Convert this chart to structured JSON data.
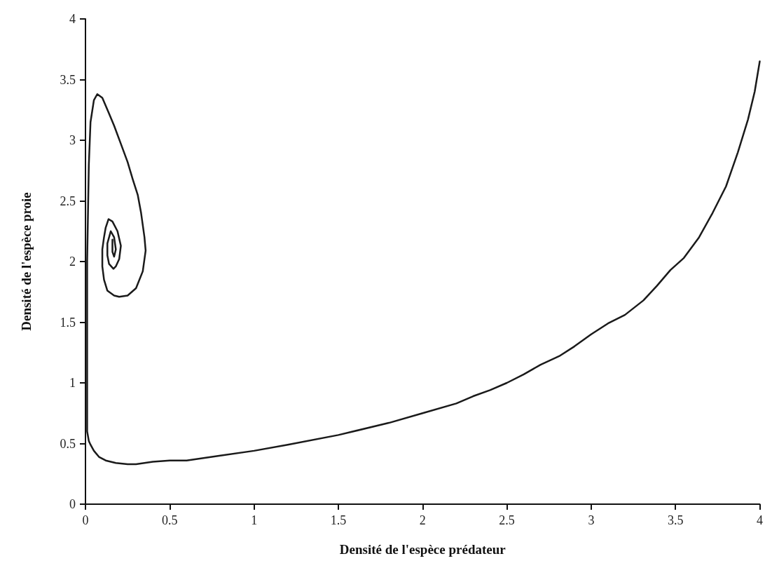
{
  "chart_data": {
    "type": "line",
    "xlabel": "Densité de l'espèce prédateur",
    "ylabel": "Densité de l'espèce proie",
    "x": [
      4,
      3.97,
      3.93,
      3.87,
      3.8,
      3.72,
      3.64,
      3.55,
      3.47,
      3.39,
      3.31,
      3.2,
      3.1,
      3,
      2.9,
      2.81,
      2.7,
      2.6,
      2.5,
      2.4,
      2.3,
      2.2,
      2,
      1.8,
      1.5,
      1.2,
      1,
      0.8,
      0.6,
      0.5,
      0.4,
      0.3,
      0.25,
      0.18,
      0.12,
      0.08,
      0.05,
      0.03,
      0.02,
      0.01,
      0.01,
      0.01,
      0.02,
      0.03,
      0.05,
      0.07,
      0.1,
      0.14,
      0.17,
      0.21,
      0.25,
      0.28,
      0.31,
      0.33,
      0.35,
      0.357,
      0.34,
      0.3,
      0.25,
      0.2,
      0.17,
      0.13,
      0.11,
      0.1,
      0.1,
      0.11,
      0.12,
      0.137,
      0.16,
      0.19,
      0.21,
      0.2,
      0.18,
      0.166,
      0.14,
      0.13,
      0.13,
      0.15,
      0.17,
      0.18,
      0.17,
      0.16,
      0.16
    ],
    "values": [
      3.65,
      3.4,
      3.17,
      2.9,
      2.62,
      2.4,
      2.2,
      2.03,
      1.93,
      1.8,
      1.68,
      1.56,
      1.49,
      1.4,
      1.3,
      1.22,
      1.15,
      1.07,
      1,
      0.94,
      0.89,
      0.83,
      0.75,
      0.67,
      0.57,
      0.49,
      0.44,
      0.4,
      0.36,
      0.36,
      0.35,
      0.33,
      0.33,
      0.34,
      0.36,
      0.39,
      0.44,
      0.49,
      0.52,
      0.6,
      0.8,
      2,
      2.8,
      3.15,
      3.33,
      3.38,
      3.35,
      3.22,
      3.12,
      2.97,
      2.82,
      2.68,
      2.55,
      2.4,
      2.2,
      2.09,
      1.92,
      1.78,
      1.72,
      1.71,
      1.72,
      1.76,
      1.85,
      1.96,
      2.1,
      2.2,
      2.28,
      2.35,
      2.33,
      2.25,
      2.13,
      2.02,
      1.96,
      1.94,
      1.98,
      2.05,
      2.15,
      2.25,
      2.2,
      2.1,
      2.04,
      2.08,
      2.18
    ],
    "color": "#1a1a1a",
    "xlim": [
      0,
      4
    ],
    "ylim": [
      0,
      4
    ],
    "xticks": [
      0,
      0.5,
      1,
      1.5,
      2,
      2.5,
      3,
      3.5,
      4
    ],
    "yticks": [
      0,
      0.5,
      1,
      1.5,
      2,
      2.5,
      3,
      3.5,
      4
    ],
    "grid": false,
    "marker": "none",
    "line_style": "solid"
  }
}
